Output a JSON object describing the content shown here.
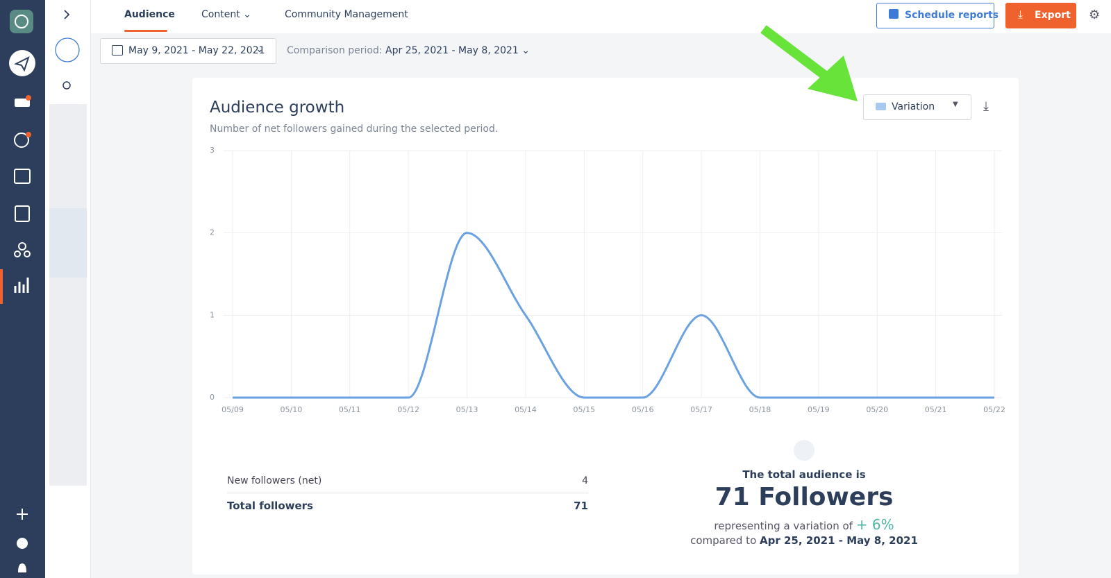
{
  "nav": {
    "tabs": [
      "Audience",
      "Content",
      "Community Management"
    ],
    "schedule_button": "Schedule reports",
    "export_button": "Export"
  },
  "filters": {
    "date_range": "May 9, 2021 - May 22, 2021",
    "comparison_label": "Comparison period:",
    "comparison_range": "Apr 25, 2021 - May 8, 2021"
  },
  "chart_data": {
    "type": "line",
    "title": "Audience growth",
    "subtitle": "Number of net followers gained during the selected period.",
    "view_selector": "Variation",
    "categories": [
      "05/09",
      "05/10",
      "05/11",
      "05/12",
      "05/13",
      "05/14",
      "05/15",
      "05/16",
      "05/17",
      "05/18",
      "05/19",
      "05/20",
      "05/21",
      "05/22"
    ],
    "values": [
      0,
      0,
      0,
      0,
      2,
      1,
      0,
      0,
      1,
      0,
      0,
      0,
      0,
      0
    ],
    "color": "#6aa1e0",
    "ylim": [
      0,
      3
    ],
    "yticks": [
      0,
      1,
      2,
      3
    ],
    "grid": true
  },
  "stats": {
    "rows": [
      [
        "New followers (net)",
        "4"
      ],
      [
        "Total followers",
        "71"
      ]
    ]
  },
  "summary": {
    "intro": "The total audience is",
    "headline": "71 Followers",
    "variation_label": "representing a variation of",
    "variation": "+ 6%",
    "compared_label": "compared to",
    "compared_range": "Apr 25, 2021 - May 8, 2021"
  }
}
